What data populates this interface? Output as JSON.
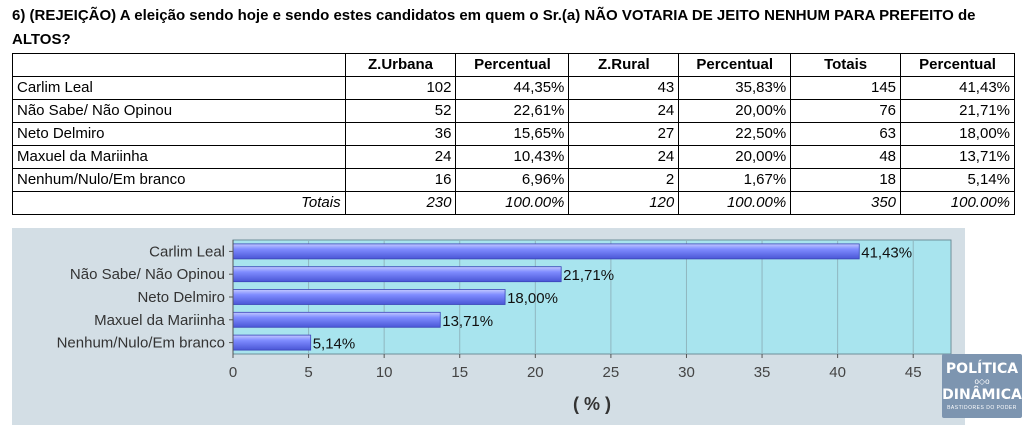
{
  "question": "6) (REJEIÇÃO) A eleição sendo hoje e sendo estes candidatos em quem o Sr.(a) NÃO VOTARIA DE JEITO NENHUM PARA PREFEITO de ALTOS?",
  "table": {
    "headers": [
      "",
      "Z.Urbana",
      "Percentual",
      "Z.Rural",
      "Percentual",
      "Totais",
      "Percentual"
    ],
    "rows": [
      [
        "Carlim Leal",
        "102",
        "44,35%",
        "43",
        "35,83%",
        "145",
        "41,43%"
      ],
      [
        "Não Sabe/ Não Opinou",
        "52",
        "22,61%",
        "24",
        "20,00%",
        "76",
        "21,71%"
      ],
      [
        "Neto Delmiro",
        "36",
        "15,65%",
        "27",
        "22,50%",
        "63",
        "18,00%"
      ],
      [
        "Maxuel da Mariinha",
        "24",
        "10,43%",
        "24",
        "20,00%",
        "48",
        "13,71%"
      ],
      [
        "Nenhum/Nulo/Em branco",
        "16",
        "6,96%",
        "2",
        "1,67%",
        "18",
        "5,14%"
      ]
    ],
    "totals": [
      "Totais",
      "230",
      "100.00%",
      "120",
      "100.00%",
      "350",
      "100.00%"
    ]
  },
  "chart_data": {
    "type": "bar",
    "orientation": "horizontal",
    "categories": [
      "Carlim Leal",
      "Não Sabe/ Não Opinou",
      "Neto Delmiro",
      "Maxuel da Mariinha",
      "Nenhum/Nulo/Em branco"
    ],
    "values": [
      41.43,
      21.71,
      18.0,
      13.71,
      5.14
    ],
    "value_labels": [
      "41,43%",
      "21,71%",
      "18,00%",
      "13,71%",
      "5,14%"
    ],
    "xlabel": "( % )",
    "xlim": [
      0,
      47.5
    ],
    "xticks": [
      0,
      5,
      10,
      15,
      20,
      25,
      30,
      35,
      40,
      45
    ],
    "grid": true,
    "colors": {
      "bar": "#6b78f2",
      "bar_highlight": "#aab4ff",
      "plot_bg": "#a8e4ee",
      "panel_bg": "#d3dee5"
    }
  },
  "logo": {
    "line1": "POLÍTICA",
    "line2": "DINÂMICA",
    "tagline": "BASTIDORES DO PODER",
    "separator": "o◇o"
  }
}
